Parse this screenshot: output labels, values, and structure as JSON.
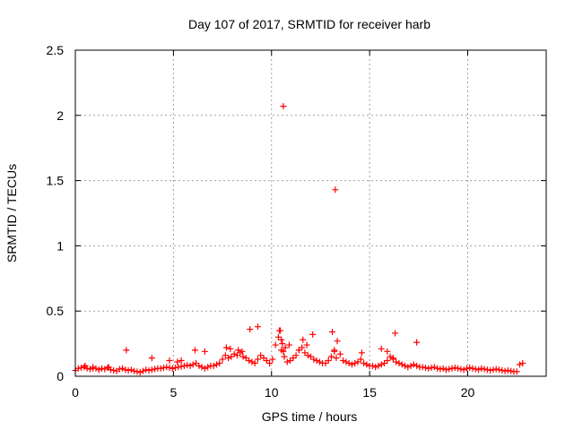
{
  "chart_data": {
    "type": "scatter",
    "title": "Day 107 of 2017, SRMTID for receiver harb",
    "xlabel": "GPS time / hours",
    "ylabel": "SRMTID / TECUs",
    "xlim": [
      0,
      24
    ],
    "ylim": [
      0,
      2.5
    ],
    "x_ticks": [
      0,
      5,
      10,
      15,
      20
    ],
    "x_tick_labels": [
      "0",
      "5",
      "10",
      "15",
      "20"
    ],
    "y_ticks": [
      0,
      0.5,
      1,
      1.5,
      2,
      2.5
    ],
    "y_tick_labels": [
      "0",
      "0.5",
      "1",
      "1.5",
      "2",
      "2.5"
    ],
    "grid": true,
    "marker": "+",
    "series": [
      {
        "name": "SRMTID",
        "color": "#ff0000",
        "x": [
          0.0,
          0.15,
          0.3,
          0.45,
          0.6,
          0.75,
          0.9,
          1.05,
          1.2,
          1.35,
          1.5,
          1.65,
          1.8,
          1.95,
          2.1,
          2.25,
          2.4,
          2.55,
          2.7,
          2.85,
          3.0,
          3.15,
          3.3,
          3.45,
          3.6,
          3.75,
          3.9,
          4.05,
          4.2,
          4.35,
          4.5,
          4.65,
          4.8,
          4.95,
          5.1,
          5.25,
          5.4,
          5.55,
          5.7,
          5.85,
          6.0,
          6.15,
          6.3,
          6.45,
          6.6,
          6.75,
          6.9,
          7.05,
          7.2,
          7.35,
          7.5,
          7.65,
          7.8,
          7.95,
          8.1,
          8.25,
          8.4,
          8.55,
          8.7,
          8.85,
          9.0,
          9.15,
          9.3,
          9.45,
          9.6,
          9.75,
          9.9,
          10.05,
          10.2,
          10.35,
          10.5,
          10.65,
          10.8,
          10.95,
          11.1,
          11.25,
          11.4,
          11.55,
          11.7,
          11.85,
          12.0,
          12.15,
          12.3,
          12.45,
          12.6,
          12.75,
          12.9,
          13.05,
          13.2,
          13.35,
          13.5,
          13.65,
          13.8,
          13.95,
          14.1,
          14.25,
          14.4,
          14.55,
          14.7,
          14.85,
          15.0,
          15.15,
          15.3,
          15.45,
          15.6,
          15.75,
          15.9,
          16.05,
          16.2,
          16.35,
          16.5,
          16.65,
          16.8,
          16.95,
          17.1,
          17.25,
          17.4,
          17.55,
          17.7,
          17.85,
          18.0,
          18.15,
          18.3,
          18.45,
          18.6,
          18.75,
          18.9,
          19.05,
          19.2,
          19.35,
          19.5,
          19.65,
          19.8,
          19.95,
          20.1,
          20.25,
          20.4,
          20.55,
          20.7,
          20.85,
          21.0,
          21.15,
          21.3,
          21.45,
          21.6,
          21.75,
          21.9,
          22.05,
          22.2,
          22.35,
          22.5,
          22.65,
          22.8,
          0.5,
          0.9,
          1.7,
          2.6,
          3.9,
          4.8,
          5.2,
          5.4,
          6.1,
          6.6,
          7.7,
          7.9,
          8.3,
          8.5,
          8.9,
          9.3,
          10.4,
          10.5,
          10.55,
          10.6,
          10.7,
          10.9,
          11.4,
          11.6,
          11.8,
          12.1,
          13.1,
          13.2,
          13.3,
          14.6,
          15.6,
          15.9,
          16.2,
          16.3,
          17.4,
          10.45,
          10.6,
          13.25
        ],
        "y": [
          0.045,
          0.06,
          0.065,
          0.07,
          0.06,
          0.055,
          0.07,
          0.06,
          0.05,
          0.06,
          0.055,
          0.065,
          0.05,
          0.045,
          0.04,
          0.055,
          0.06,
          0.05,
          0.045,
          0.05,
          0.04,
          0.035,
          0.03,
          0.04,
          0.05,
          0.045,
          0.05,
          0.055,
          0.06,
          0.06,
          0.065,
          0.07,
          0.065,
          0.06,
          0.065,
          0.07,
          0.075,
          0.08,
          0.085,
          0.08,
          0.09,
          0.1,
          0.08,
          0.07,
          0.06,
          0.07,
          0.08,
          0.08,
          0.09,
          0.1,
          0.13,
          0.16,
          0.14,
          0.15,
          0.17,
          0.16,
          0.18,
          0.15,
          0.14,
          0.12,
          0.11,
          0.1,
          0.13,
          0.16,
          0.14,
          0.12,
          0.1,
          0.13,
          0.24,
          0.3,
          0.2,
          0.15,
          0.11,
          0.12,
          0.14,
          0.16,
          0.2,
          0.22,
          0.18,
          0.16,
          0.15,
          0.13,
          0.12,
          0.11,
          0.1,
          0.1,
          0.12,
          0.15,
          0.2,
          0.27,
          0.17,
          0.12,
          0.11,
          0.1,
          0.09,
          0.1,
          0.11,
          0.13,
          0.1,
          0.09,
          0.08,
          0.08,
          0.07,
          0.08,
          0.09,
          0.1,
          0.12,
          0.15,
          0.14,
          0.11,
          0.1,
          0.09,
          0.08,
          0.07,
          0.08,
          0.09,
          0.08,
          0.07,
          0.07,
          0.065,
          0.06,
          0.065,
          0.07,
          0.06,
          0.055,
          0.06,
          0.05,
          0.055,
          0.06,
          0.065,
          0.06,
          0.055,
          0.05,
          0.06,
          0.065,
          0.06,
          0.055,
          0.05,
          0.06,
          0.055,
          0.05,
          0.045,
          0.05,
          0.055,
          0.05,
          0.045,
          0.04,
          0.045,
          0.04,
          0.035,
          0.035,
          0.09,
          0.1,
          0.08,
          0.06,
          0.07,
          0.2,
          0.14,
          0.12,
          0.11,
          0.12,
          0.2,
          0.19,
          0.22,
          0.21,
          0.2,
          0.19,
          0.36,
          0.38,
          0.35,
          0.28,
          0.25,
          0.19,
          0.22,
          0.24,
          0.2,
          0.28,
          0.24,
          0.32,
          0.34,
          0.19,
          0.14,
          0.18,
          0.21,
          0.19,
          0.13,
          0.33,
          0.26,
          0.35,
          2.07,
          1.43
        ]
      }
    ]
  }
}
